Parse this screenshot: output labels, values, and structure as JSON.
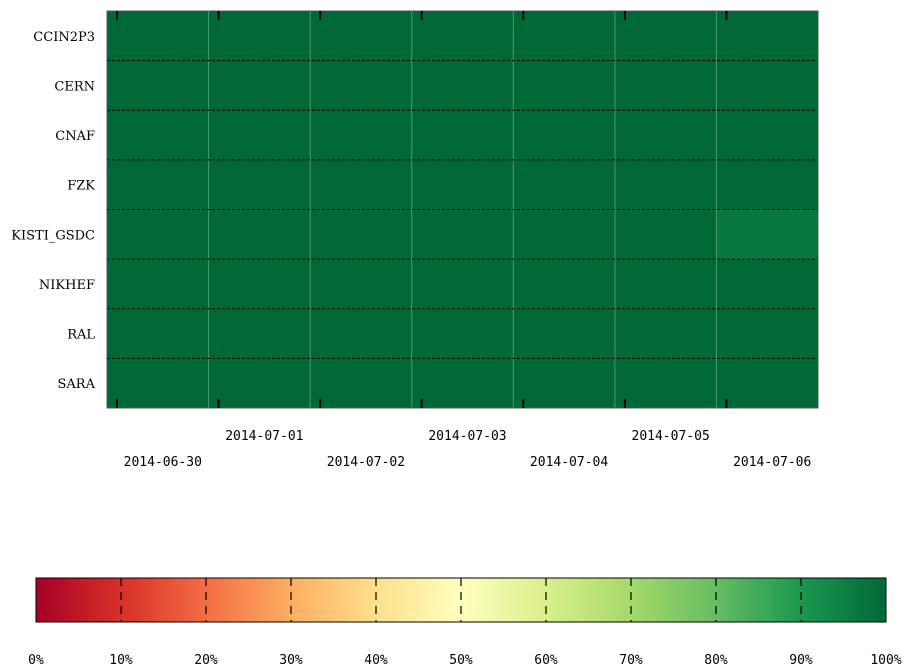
{
  "chart_data": {
    "type": "heatmap",
    "title": "",
    "xlabel": "",
    "ylabel": "",
    "sites": [
      "CCIN2P3",
      "CERN",
      "CNAF",
      "FZK",
      "KISTI_GSDC",
      "NIKHEF",
      "RAL",
      "SARA"
    ],
    "dates": [
      "2014-06-30",
      "2014-07-01",
      "2014-07-02",
      "2014-07-03",
      "2014-07-04",
      "2014-07-05",
      "2014-07-06"
    ],
    "values": [
      [
        100,
        100,
        100,
        100,
        100,
        100,
        100
      ],
      [
        100,
        100,
        100,
        100,
        100,
        100,
        100
      ],
      [
        100,
        100,
        100,
        100,
        100,
        100,
        100
      ],
      [
        100,
        100,
        100,
        100,
        100,
        100,
        100
      ],
      [
        100,
        100,
        100,
        100,
        100,
        100,
        97
      ],
      [
        100,
        100,
        100,
        100,
        100,
        100,
        100
      ],
      [
        100,
        100,
        100,
        100,
        100,
        100,
        100
      ],
      [
        100,
        100,
        100,
        100,
        100,
        100,
        100
      ]
    ],
    "value_unit": "%",
    "colorbar": {
      "ticks": [
        "0%",
        "10%",
        "20%",
        "30%",
        "40%",
        "50%",
        "60%",
        "70%",
        "80%",
        "90%",
        "100%"
      ],
      "range": [
        0,
        100
      ],
      "colors": [
        "#a50026",
        "#d73027",
        "#f46d43",
        "#fdae61",
        "#fee08b",
        "#ffffbf",
        "#d9ef8b",
        "#a6d96a",
        "#66bd63",
        "#1a9850",
        "#006837"
      ]
    },
    "grid": true
  }
}
